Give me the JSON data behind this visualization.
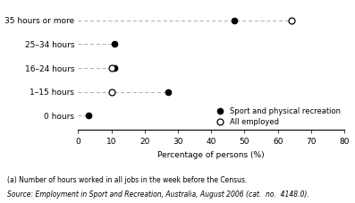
{
  "categories": [
    "0 hours",
    "1–15 hours",
    "16–24 hours",
    "25–34 hours",
    "35 hours or more"
  ],
  "sport_values": [
    3,
    27,
    11,
    11,
    47
  ],
  "employed_values": [
    null,
    10,
    10,
    null,
    64
  ],
  "xlim": [
    0,
    80
  ],
  "xticks": [
    0,
    10,
    20,
    30,
    40,
    50,
    60,
    70,
    80
  ],
  "xlabel": "Percentage of persons (%)",
  "legend_sport": "Sport and physical recreation",
  "legend_employed": "All employed",
  "footnote1": "(a) Number of hours worked in all jobs in the week before the Census.",
  "footnote2": "Source: Employment in Sport and Recreation, Australia, August 2006 (cat.  no.  4148.0).",
  "sport_color": "#000000",
  "employed_color": "#000000",
  "dashed_color": "#aaaaaa",
  "bg_color": "#ffffff"
}
